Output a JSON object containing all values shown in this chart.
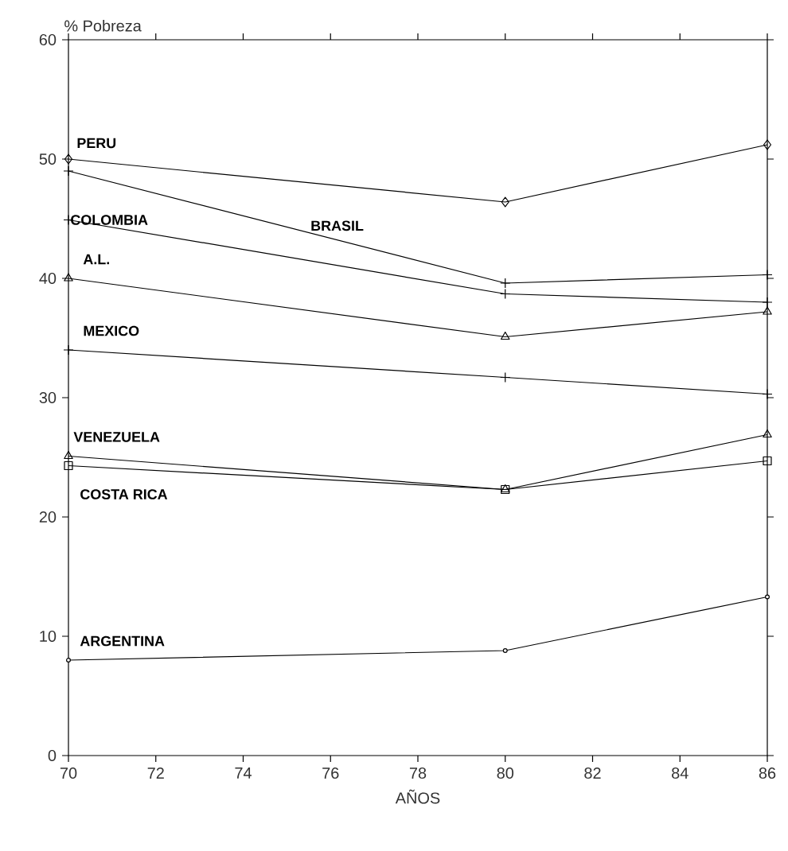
{
  "chart_data": {
    "type": "line",
    "xlabel": "AÑOS",
    "ylabel": "% Pobreza",
    "x": [
      70,
      80,
      86
    ],
    "series": [
      {
        "name": "PERU",
        "color": "#000000",
        "marker": "diamond",
        "values": [
          50,
          46.4,
          51.2
        ]
      },
      {
        "name": "BRASIL",
        "color": "#000000",
        "marker": "cross",
        "values": [
          49,
          39.6,
          40.3
        ]
      },
      {
        "name": "COLOMBIA",
        "color": "#000000",
        "marker": "cross",
        "values": [
          44.9,
          38.7,
          38
        ]
      },
      {
        "name": "A.L.",
        "color": "#000000",
        "marker": "triangle",
        "values": [
          40,
          35.1,
          37.2
        ]
      },
      {
        "name": "MEXICO",
        "color": "#000000",
        "marker": "cross",
        "values": [
          34,
          31.7,
          30.3
        ]
      },
      {
        "name": "VENEZUELA",
        "color": "#000000",
        "marker": "triangle",
        "values": [
          25.1,
          22.3,
          26.9
        ]
      },
      {
        "name": "COSTA RICA",
        "color": "#000000",
        "marker": "square",
        "values": [
          24.3,
          22.3,
          24.7
        ]
      },
      {
        "name": "ARGENTINA",
        "color": "#000000",
        "marker": "circle",
        "values": [
          8,
          8.8,
          13.3
        ]
      }
    ],
    "xlim": [
      70,
      86
    ],
    "xticks": [
      70,
      72,
      74,
      76,
      78,
      80,
      82,
      84,
      86
    ],
    "ylim": [
      0,
      60
    ],
    "yticks": [
      0,
      10,
      20,
      30,
      40,
      50,
      60
    ],
    "grid": false,
    "line_style": "solid"
  }
}
